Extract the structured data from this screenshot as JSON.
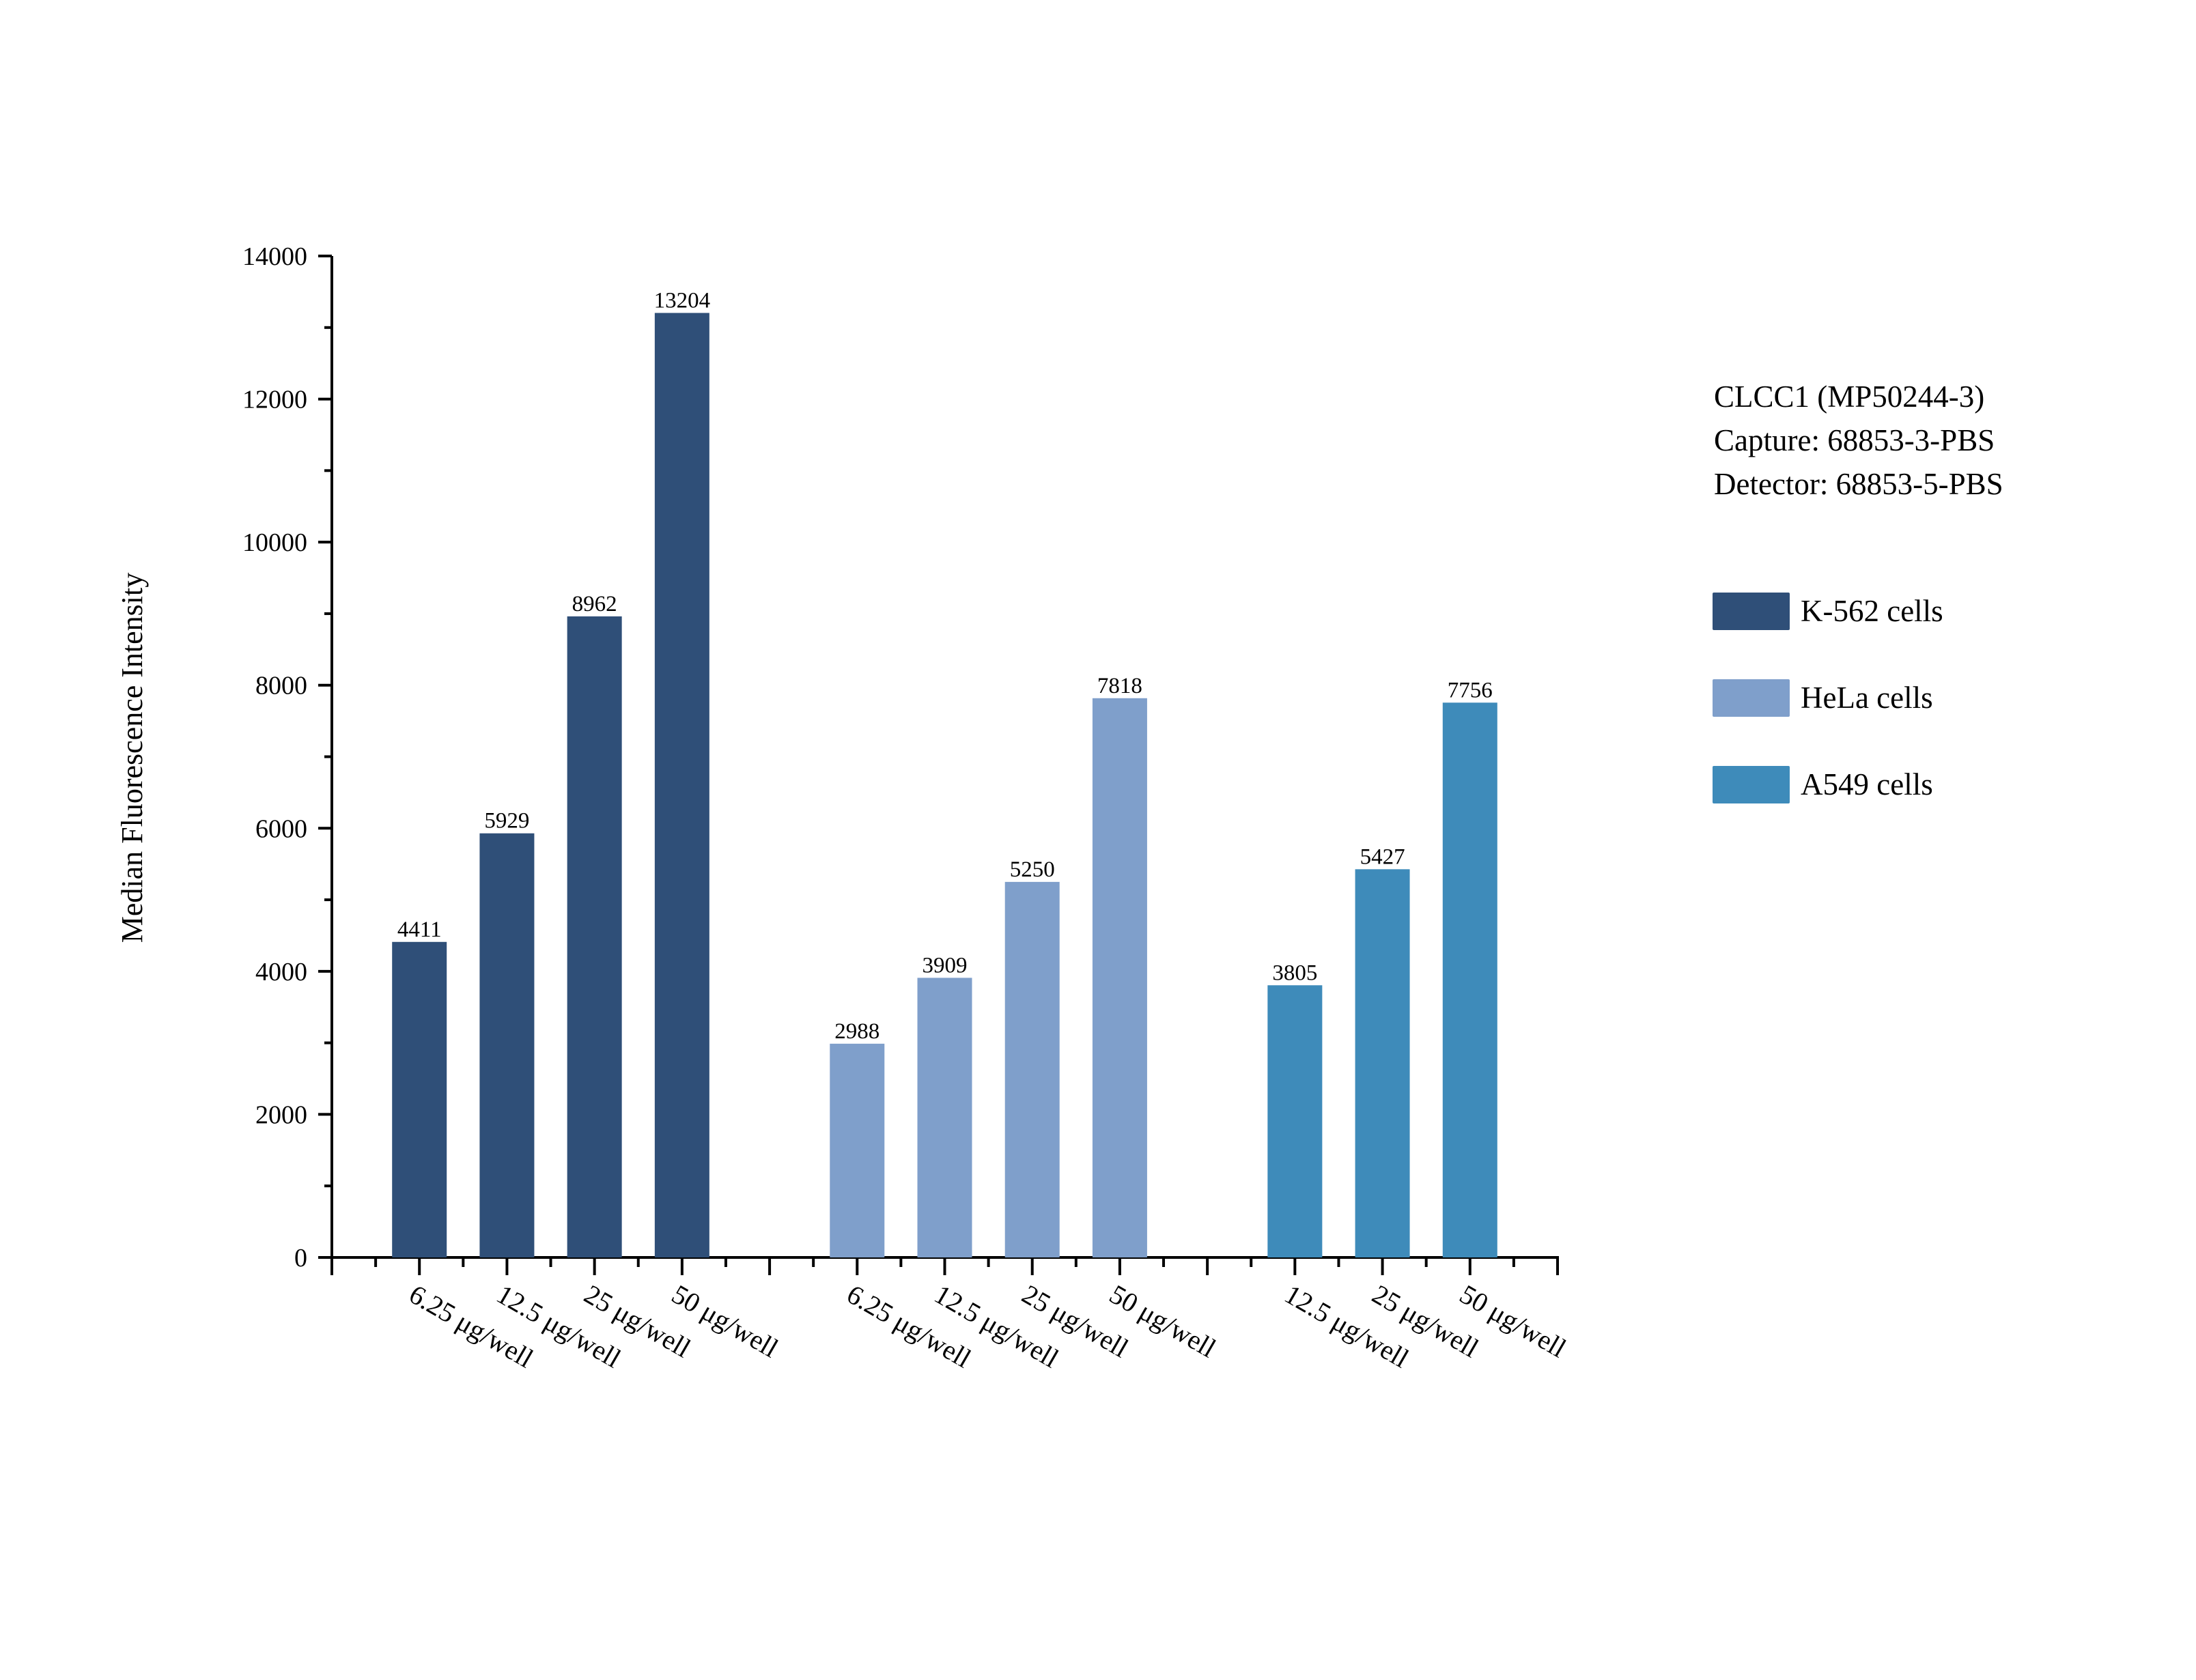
{
  "chart_data": {
    "type": "bar",
    "title": "",
    "ylabel": "Median Fluorescence Intensity",
    "xlabel": "",
    "ylim": [
      0,
      14000
    ],
    "yticks": [
      0,
      2000,
      4000,
      6000,
      8000,
      10000,
      12000,
      14000
    ],
    "grid": false,
    "legend_placement": "right",
    "annotation": [
      "CLCC1 (MP50244-3)",
      "Capture: 68853-3-PBS",
      "Detector: 68853-5-PBS"
    ],
    "series": [
      {
        "name": "K-562 cells",
        "color": "#2f4f78",
        "categories": [
          "6.25 μg/well",
          "12.5 μg/well",
          "25 μg/well",
          "50 μg/well"
        ],
        "values": [
          4411,
          5929,
          8962,
          13204
        ]
      },
      {
        "name": "HeLa cells",
        "color": "#7f9fcb",
        "categories": [
          "6.25 μg/well",
          "12.5 μg/well",
          "25 μg/well",
          "50 μg/well"
        ],
        "values": [
          2988,
          3909,
          5250,
          7818
        ]
      },
      {
        "name": "A549 cells",
        "color": "#3e8bba",
        "categories": [
          "12.5 μg/well",
          "25 μg/well",
          "50 μg/well"
        ],
        "values": [
          3805,
          5427,
          7756
        ]
      }
    ]
  }
}
